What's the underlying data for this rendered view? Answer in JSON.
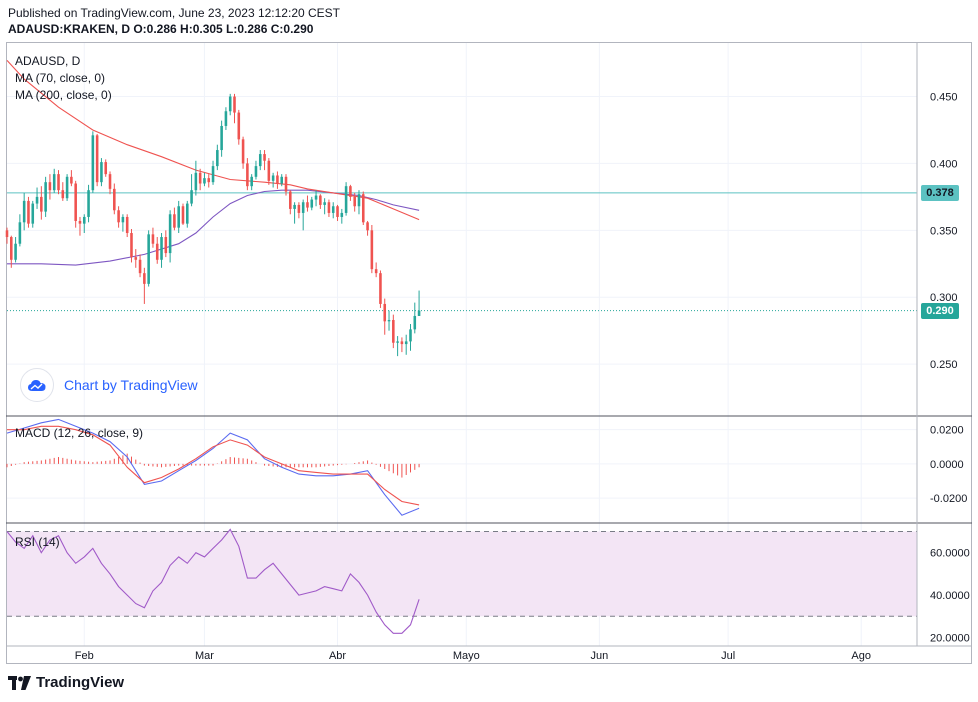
{
  "header": {
    "published": "Published on TradingView.com, June 23, 2023 12:12:20 CEST",
    "ohlc": "ADAUSD:KRAKEN, D  O:0.286  H:0.305  L:0.286  C:0.290"
  },
  "legend": {
    "symbol": "ADAUSD, D",
    "ma70": "MA (70, close, 0)",
    "ma200": "MA (200, close, 0)",
    "macd": "MACD (12, 26, close, 9)",
    "rsi": "RSI (14)"
  },
  "badges": {
    "level": "0.378",
    "last": "0.290"
  },
  "watermark": "Chart by TradingView",
  "footer": {
    "brand": "TradingView"
  },
  "colors": {
    "up": "#26a69a",
    "down": "#ef5350",
    "ma70": "#ef5350",
    "ma200": "#7e57c2",
    "macd": "#5b6bf0",
    "signal": "#ef5350",
    "rsi": "#a05ac8",
    "level": "#5cc2c2",
    "last": "#26a69a",
    "rsiband": "#f3e5f5"
  },
  "chart_data": {
    "type": "candlestick",
    "symbol": "ADAUSD:KRAKEN",
    "x_labels": [
      {
        "label": "Feb",
        "day": 18
      },
      {
        "label": "Mar",
        "day": 46
      },
      {
        "label": "Abr",
        "day": 77
      },
      {
        "label": "Mayo",
        "day": 107
      },
      {
        "label": "Jun",
        "day": 138
      },
      {
        "label": "Jul",
        "day": 168
      },
      {
        "label": "Ago",
        "day": 199
      }
    ],
    "x_range": [
      0,
      212
    ],
    "price": {
      "ylim": [
        0.212,
        0.49
      ],
      "ticks": [
        0.45,
        0.4,
        0.35,
        0.3,
        0.25
      ],
      "tick_labels": [
        "0.450",
        "0.400",
        "0.350",
        "0.300",
        "0.250"
      ],
      "horizontal_level": 0.378,
      "last_close": 0.29,
      "candles": [
        [
          0,
          0.35,
          0.352,
          0.34,
          0.345
        ],
        [
          1,
          0.345,
          0.346,
          0.322,
          0.328
        ],
        [
          2,
          0.328,
          0.345,
          0.326,
          0.34
        ],
        [
          3,
          0.34,
          0.362,
          0.338,
          0.356
        ],
        [
          4,
          0.356,
          0.378,
          0.35,
          0.372
        ],
        [
          5,
          0.372,
          0.375,
          0.352,
          0.355
        ],
        [
          6,
          0.355,
          0.372,
          0.352,
          0.37
        ],
        [
          7,
          0.37,
          0.382,
          0.366,
          0.375
        ],
        [
          8,
          0.375,
          0.383,
          0.358,
          0.364
        ],
        [
          9,
          0.364,
          0.39,
          0.36,
          0.386
        ],
        [
          10,
          0.386,
          0.392,
          0.373,
          0.38
        ],
        [
          11,
          0.38,
          0.396,
          0.378,
          0.392
        ],
        [
          12,
          0.392,
          0.395,
          0.377,
          0.38
        ],
        [
          13,
          0.38,
          0.386,
          0.372,
          0.374
        ],
        [
          14,
          0.374,
          0.392,
          0.372,
          0.39
        ],
        [
          15,
          0.39,
          0.395,
          0.383,
          0.385
        ],
        [
          16,
          0.385,
          0.387,
          0.352,
          0.357
        ],
        [
          17,
          0.357,
          0.36,
          0.346,
          0.355
        ],
        [
          18,
          0.355,
          0.362,
          0.348,
          0.36
        ],
        [
          19,
          0.36,
          0.384,
          0.356,
          0.38
        ],
        [
          20,
          0.38,
          0.424,
          0.378,
          0.421
        ],
        [
          21,
          0.421,
          0.422,
          0.383,
          0.386
        ],
        [
          22,
          0.386,
          0.404,
          0.383,
          0.401
        ],
        [
          23,
          0.401,
          0.403,
          0.39,
          0.392
        ],
        [
          24,
          0.392,
          0.394,
          0.377,
          0.381
        ],
        [
          25,
          0.381,
          0.385,
          0.362,
          0.365
        ],
        [
          26,
          0.365,
          0.368,
          0.352,
          0.356
        ],
        [
          27,
          0.356,
          0.362,
          0.349,
          0.36
        ],
        [
          28,
          0.36,
          0.362,
          0.345,
          0.348
        ],
        [
          29,
          0.348,
          0.351,
          0.326,
          0.33
        ],
        [
          30,
          0.33,
          0.336,
          0.322,
          0.328
        ],
        [
          31,
          0.328,
          0.332,
          0.315,
          0.318
        ],
        [
          32,
          0.318,
          0.322,
          0.295,
          0.31
        ],
        [
          33,
          0.31,
          0.35,
          0.308,
          0.347
        ],
        [
          34,
          0.347,
          0.352,
          0.337,
          0.34
        ],
        [
          35,
          0.34,
          0.345,
          0.325,
          0.328
        ],
        [
          36,
          0.328,
          0.348,
          0.322,
          0.345
        ],
        [
          37,
          0.345,
          0.35,
          0.33,
          0.333
        ],
        [
          38,
          0.333,
          0.365,
          0.326,
          0.362
        ],
        [
          39,
          0.362,
          0.367,
          0.35,
          0.352
        ],
        [
          40,
          0.352,
          0.372,
          0.348,
          0.368
        ],
        [
          41,
          0.368,
          0.37,
          0.354,
          0.355
        ],
        [
          42,
          0.355,
          0.372,
          0.352,
          0.37
        ],
        [
          43,
          0.37,
          0.392,
          0.368,
          0.38
        ],
        [
          44,
          0.38,
          0.402,
          0.376,
          0.393
        ],
        [
          45,
          0.393,
          0.396,
          0.38,
          0.385
        ],
        [
          46,
          0.385,
          0.393,
          0.383,
          0.389
        ],
        [
          47,
          0.389,
          0.392,
          0.382,
          0.386
        ],
        [
          48,
          0.386,
          0.402,
          0.384,
          0.398
        ],
        [
          49,
          0.398,
          0.414,
          0.395,
          0.41
        ],
        [
          50,
          0.41,
          0.432,
          0.405,
          0.428
        ],
        [
          51,
          0.428,
          0.442,
          0.425,
          0.439
        ],
        [
          52,
          0.439,
          0.452,
          0.436,
          0.45
        ],
        [
          53,
          0.45,
          0.452,
          0.43,
          0.438
        ],
        [
          54,
          0.438,
          0.44,
          0.414,
          0.418
        ],
        [
          55,
          0.418,
          0.42,
          0.396,
          0.4
        ],
        [
          56,
          0.4,
          0.404,
          0.38,
          0.383
        ],
        [
          57,
          0.383,
          0.392,
          0.38,
          0.39
        ],
        [
          58,
          0.39,
          0.402,
          0.388,
          0.398
        ],
        [
          59,
          0.398,
          0.41,
          0.395,
          0.407
        ],
        [
          60,
          0.407,
          0.41,
          0.395,
          0.402
        ],
        [
          61,
          0.402,
          0.404,
          0.384,
          0.387
        ],
        [
          62,
          0.387,
          0.393,
          0.382,
          0.391
        ],
        [
          63,
          0.391,
          0.394,
          0.381,
          0.385
        ],
        [
          64,
          0.385,
          0.392,
          0.383,
          0.39
        ],
        [
          65,
          0.39,
          0.392,
          0.376,
          0.379
        ],
        [
          66,
          0.379,
          0.38,
          0.362,
          0.366
        ],
        [
          67,
          0.366,
          0.371,
          0.355,
          0.369
        ],
        [
          68,
          0.369,
          0.371,
          0.359,
          0.363
        ],
        [
          69,
          0.363,
          0.373,
          0.35,
          0.371
        ],
        [
          70,
          0.371,
          0.376,
          0.364,
          0.367
        ],
        [
          71,
          0.367,
          0.375,
          0.365,
          0.373
        ],
        [
          72,
          0.373,
          0.38,
          0.368,
          0.376
        ],
        [
          73,
          0.376,
          0.377,
          0.366,
          0.369
        ],
        [
          74,
          0.369,
          0.374,
          0.362,
          0.371
        ],
        [
          75,
          0.371,
          0.373,
          0.36,
          0.363
        ],
        [
          76,
          0.363,
          0.371,
          0.359,
          0.368
        ],
        [
          77,
          0.368,
          0.369,
          0.357,
          0.36
        ],
        [
          78,
          0.36,
          0.366,
          0.355,
          0.363
        ],
        [
          79,
          0.363,
          0.386,
          0.361,
          0.383
        ],
        [
          80,
          0.383,
          0.384,
          0.372,
          0.375
        ],
        [
          81,
          0.375,
          0.378,
          0.364,
          0.368
        ],
        [
          82,
          0.368,
          0.38,
          0.362,
          0.377
        ],
        [
          83,
          0.377,
          0.379,
          0.354,
          0.356
        ],
        [
          84,
          0.356,
          0.357,
          0.346,
          0.35
        ],
        [
          85,
          0.35,
          0.354,
          0.318,
          0.321
        ],
        [
          86,
          0.321,
          0.326,
          0.315,
          0.318
        ],
        [
          87,
          0.318,
          0.32,
          0.292,
          0.295
        ],
        [
          88,
          0.295,
          0.299,
          0.272,
          0.282
        ],
        [
          89,
          0.282,
          0.29,
          0.275,
          0.283
        ],
        [
          90,
          0.283,
          0.287,
          0.262,
          0.266
        ],
        [
          91,
          0.266,
          0.271,
          0.256,
          0.267
        ],
        [
          92,
          0.267,
          0.27,
          0.259,
          0.265
        ],
        [
          93,
          0.265,
          0.272,
          0.257,
          0.267
        ],
        [
          94,
          0.267,
          0.28,
          0.26,
          0.276
        ],
        [
          95,
          0.276,
          0.296,
          0.273,
          0.286
        ],
        [
          96,
          0.286,
          0.305,
          0.286,
          0.29
        ]
      ],
      "ma70": [
        [
          0,
          0.477
        ],
        [
          4,
          0.463
        ],
        [
          12,
          0.442
        ],
        [
          20,
          0.425
        ],
        [
          28,
          0.414
        ],
        [
          36,
          0.405
        ],
        [
          44,
          0.395
        ],
        [
          52,
          0.388
        ],
        [
          60,
          0.386
        ],
        [
          66,
          0.384
        ],
        [
          70,
          0.381
        ],
        [
          76,
          0.378
        ],
        [
          84,
          0.374
        ],
        [
          90,
          0.366
        ],
        [
          96,
          0.358
        ]
      ],
      "ma200": [
        [
          0,
          0.325
        ],
        [
          8,
          0.325
        ],
        [
          16,
          0.324
        ],
        [
          24,
          0.327
        ],
        [
          32,
          0.332
        ],
        [
          40,
          0.34
        ],
        [
          44,
          0.348
        ],
        [
          48,
          0.36
        ],
        [
          52,
          0.37
        ],
        [
          56,
          0.376
        ],
        [
          60,
          0.379
        ],
        [
          64,
          0.38
        ],
        [
          70,
          0.38
        ],
        [
          76,
          0.378
        ],
        [
          82,
          0.376
        ],
        [
          86,
          0.373
        ],
        [
          90,
          0.369
        ],
        [
          96,
          0.365
        ]
      ]
    },
    "macd": {
      "ylim": [
        -0.034,
        0.028
      ],
      "ticks": [
        0.02,
        0.0,
        -0.02
      ],
      "tick_labels": [
        "0.0200",
        "0.0000",
        "-0.0200"
      ],
      "macd": [
        [
          0,
          0.018
        ],
        [
          4,
          0.021
        ],
        [
          8,
          0.024
        ],
        [
          12,
          0.026
        ],
        [
          16,
          0.022
        ],
        [
          20,
          0.018
        ],
        [
          24,
          0.013
        ],
        [
          28,
          0.004
        ],
        [
          32,
          -0.012
        ],
        [
          36,
          -0.01
        ],
        [
          40,
          -0.004
        ],
        [
          44,
          0.002
        ],
        [
          48,
          0.009
        ],
        [
          52,
          0.018
        ],
        [
          56,
          0.014
        ],
        [
          60,
          0.003
        ],
        [
          64,
          -0.002
        ],
        [
          68,
          -0.006
        ],
        [
          72,
          -0.007
        ],
        [
          76,
          -0.007
        ],
        [
          80,
          -0.006
        ],
        [
          84,
          -0.004
        ],
        [
          88,
          -0.018
        ],
        [
          92,
          -0.03
        ],
        [
          96,
          -0.026
        ]
      ],
      "signal": [
        [
          0,
          0.02
        ],
        [
          4,
          0.02
        ],
        [
          8,
          0.022
        ],
        [
          12,
          0.022
        ],
        [
          16,
          0.02
        ],
        [
          20,
          0.017
        ],
        [
          24,
          0.011
        ],
        [
          28,
          -0.002
        ],
        [
          32,
          -0.011
        ],
        [
          36,
          -0.008
        ],
        [
          40,
          -0.003
        ],
        [
          44,
          0.003
        ],
        [
          48,
          0.01
        ],
        [
          52,
          0.014
        ],
        [
          56,
          0.011
        ],
        [
          60,
          0.004
        ],
        [
          64,
          0.0
        ],
        [
          68,
          -0.004
        ],
        [
          72,
          -0.005
        ],
        [
          76,
          -0.006
        ],
        [
          80,
          -0.006
        ],
        [
          84,
          -0.006
        ],
        [
          88,
          -0.015
        ],
        [
          92,
          -0.022
        ],
        [
          96,
          -0.024
        ]
      ]
    },
    "rsi": {
      "ylim": [
        16,
        74
      ],
      "ticks": [
        60,
        40,
        20
      ],
      "tick_labels": [
        "60.0000",
        "40.0000",
        "20.0000"
      ],
      "band": [
        30,
        70
      ],
      "values": [
        [
          0,
          70
        ],
        [
          2,
          65
        ],
        [
          4,
          62
        ],
        [
          6,
          68
        ],
        [
          8,
          60
        ],
        [
          10,
          66
        ],
        [
          12,
          68
        ],
        [
          14,
          60
        ],
        [
          16,
          55
        ],
        [
          18,
          58
        ],
        [
          20,
          62
        ],
        [
          22,
          55
        ],
        [
          24,
          50
        ],
        [
          26,
          44
        ],
        [
          28,
          40
        ],
        [
          30,
          36
        ],
        [
          32,
          34
        ],
        [
          34,
          42
        ],
        [
          36,
          46
        ],
        [
          38,
          54
        ],
        [
          40,
          58
        ],
        [
          42,
          55
        ],
        [
          44,
          60
        ],
        [
          46,
          58
        ],
        [
          48,
          62
        ],
        [
          50,
          66
        ],
        [
          52,
          71
        ],
        [
          54,
          63
        ],
        [
          56,
          48
        ],
        [
          58,
          48
        ],
        [
          60,
          52
        ],
        [
          62,
          55
        ],
        [
          64,
          50
        ],
        [
          66,
          45
        ],
        [
          68,
          40
        ],
        [
          70,
          41
        ],
        [
          72,
          42
        ],
        [
          74,
          44
        ],
        [
          76,
          43
        ],
        [
          78,
          42
        ],
        [
          80,
          50
        ],
        [
          82,
          46
        ],
        [
          84,
          40
        ],
        [
          86,
          32
        ],
        [
          88,
          26
        ],
        [
          90,
          22
        ],
        [
          92,
          22
        ],
        [
          94,
          26
        ],
        [
          96,
          38
        ]
      ]
    }
  }
}
